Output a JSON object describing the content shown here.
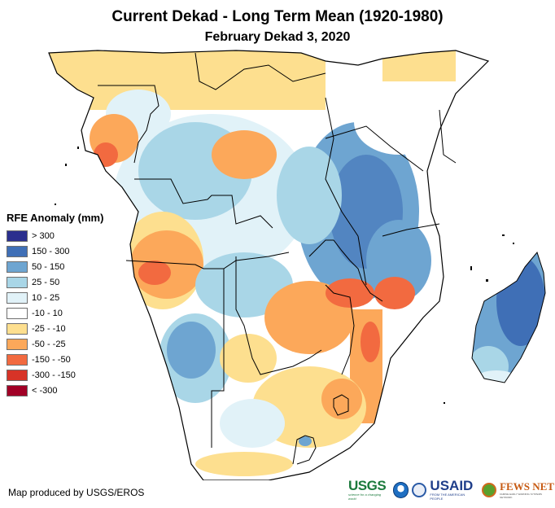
{
  "header": {
    "title": "Current Dekad - Long Term Mean (1920-1980)",
    "subtitle": "February Dekad 3, 2020"
  },
  "legend": {
    "title": "RFE Anomaly (mm)",
    "items": [
      {
        "label": "> 300",
        "color": "#2b2f8e"
      },
      {
        "label": "150 - 300",
        "color": "#3f6fb6"
      },
      {
        "label": "50 - 150",
        "color": "#6ea5d1"
      },
      {
        "label": "25 - 50",
        "color": "#a9d6e7"
      },
      {
        "label": "10 - 25",
        "color": "#e1f2f8"
      },
      {
        "label": "-10 - 10",
        "color": "#ffffff"
      },
      {
        "label": "-25 - -10",
        "color": "#fddf8f"
      },
      {
        "label": "-50 - -25",
        "color": "#fca85a"
      },
      {
        "label": "-150 - -50",
        "color": "#f26a40"
      },
      {
        "label": "-300 - -150",
        "color": "#d73327"
      },
      {
        "label": "< -300",
        "color": "#a10026"
      }
    ]
  },
  "map": {
    "region": "Southern and Eastern Africa",
    "border_color": "#000000",
    "background": "#ffffff"
  },
  "footer": {
    "credit": "Map produced by USGS/EROS",
    "logos": {
      "usgs": "USGS",
      "usgs_tagline": "science for a changing world",
      "usaid": "USAID",
      "usaid_tagline": "FROM THE AMERICAN PEOPLE",
      "fews": "FEWS NET",
      "fews_tagline": "FAMINE EARLY WARNING SYSTEMS NETWORK"
    }
  }
}
